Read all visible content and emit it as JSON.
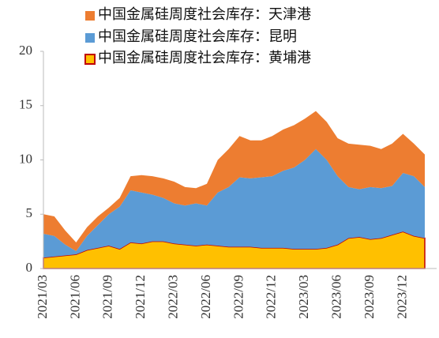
{
  "chart_data": {
    "type": "stacked_area",
    "categories": [
      "2021/03",
      null,
      null,
      "2021/06",
      null,
      null,
      "2021/09",
      null,
      null,
      "2021/12",
      null,
      null,
      "2022/03",
      null,
      null,
      "2022/06",
      null,
      null,
      "2022/09",
      null,
      null,
      "2022/12",
      null,
      null,
      "2023/03",
      null,
      null,
      "2023/06",
      null,
      null,
      "2023/09",
      null,
      null,
      "2023/12",
      null,
      null
    ],
    "series": [
      {
        "name": "中国金属硅周度社会库存：黄埔港",
        "color": "#FFC000",
        "edge_color": "#C00000",
        "values": [
          1.0,
          1.1,
          1.2,
          1.3,
          1.7,
          1.9,
          2.1,
          1.8,
          2.4,
          2.3,
          2.5,
          2.5,
          2.3,
          2.2,
          2.1,
          2.2,
          2.1,
          2.0,
          2.0,
          2.0,
          1.9,
          1.9,
          1.9,
          1.8,
          1.8,
          1.8,
          1.9,
          2.2,
          2.8,
          2.9,
          2.7,
          2.8,
          3.1,
          3.4,
          3.0,
          2.8
        ]
      },
      {
        "name": "中国金属硅周度社会库存：昆明",
        "color": "#5B9BD5",
        "values": [
          2.2,
          1.9,
          1.0,
          0.3,
          1.3,
          2.1,
          2.9,
          3.9,
          4.8,
          4.7,
          4.3,
          4.0,
          3.7,
          3.6,
          3.9,
          3.6,
          4.9,
          5.5,
          6.4,
          6.3,
          6.5,
          6.6,
          7.1,
          7.5,
          8.2,
          9.2,
          8.1,
          6.3,
          4.7,
          4.4,
          4.8,
          4.6,
          4.5,
          5.4,
          5.5,
          4.7
        ]
      },
      {
        "name": "中国金属硅周度社会库存：天津港",
        "color": "#ED7D31",
        "values": [
          1.8,
          1.8,
          1.3,
          0.8,
          0.8,
          0.8,
          0.6,
          0.8,
          1.3,
          1.6,
          1.7,
          1.8,
          2.0,
          1.7,
          1.4,
          2.0,
          3.0,
          3.5,
          3.8,
          3.5,
          3.4,
          3.7,
          3.8,
          3.9,
          3.8,
          3.5,
          3.5,
          3.5,
          4.0,
          4.1,
          3.8,
          3.6,
          3.9,
          3.6,
          3.0,
          3.0
        ]
      }
    ],
    "ylim": [
      0,
      20
    ],
    "yticks": [
      0,
      5,
      10,
      15,
      20
    ],
    "grid": false
  }
}
